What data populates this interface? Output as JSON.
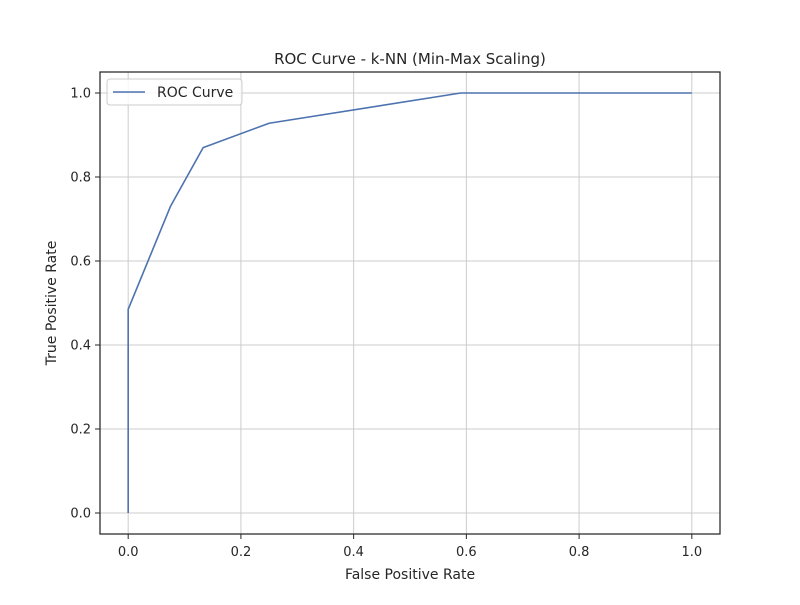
{
  "chart_data": {
    "type": "line",
    "title": "ROC Curve - k-NN (Min-Max Scaling)",
    "xlabel": "False Positive Rate",
    "ylabel": "True Positive Rate",
    "xlim": [
      -0.05,
      1.05
    ],
    "ylim": [
      -0.05,
      1.05
    ],
    "x_ticks": [
      0.0,
      0.2,
      0.4,
      0.6,
      0.8,
      1.0
    ],
    "x_tick_labels": [
      "0.0",
      "0.2",
      "0.4",
      "0.6",
      "0.8",
      "1.0"
    ],
    "y_ticks": [
      0.0,
      0.2,
      0.4,
      0.6,
      0.8,
      1.0
    ],
    "y_tick_labels": [
      "0.0",
      "0.2",
      "0.4",
      "0.6",
      "0.8",
      "1.0"
    ],
    "grid": true,
    "legend_position": "top-left",
    "series": [
      {
        "name": "ROC Curve",
        "color": "#4c72b0",
        "x": [
          0.0,
          0.0,
          0.0,
          0.075,
          0.133,
          0.25,
          0.59,
          1.0
        ],
        "y": [
          0.0,
          0.0,
          0.485,
          0.73,
          0.87,
          0.928,
          1.0,
          1.0
        ]
      }
    ]
  }
}
